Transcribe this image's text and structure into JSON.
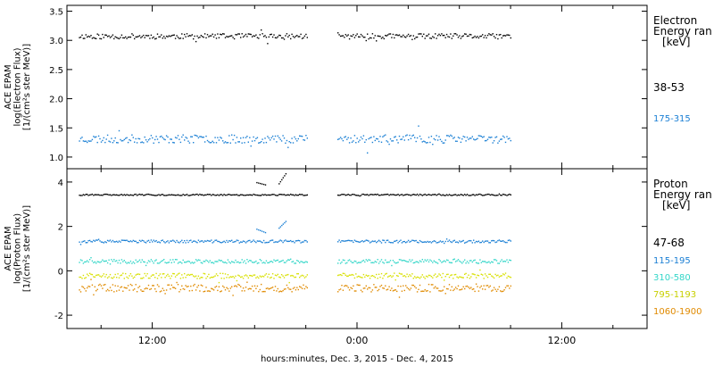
{
  "chart_data": [
    {
      "type": "scatter",
      "panel": "electron",
      "ylabel_lines": [
        "ACE EPAM",
        "log(Electron Flux)",
        "[1/(cm²s ster MeV)]"
      ],
      "ylim": [
        0.8,
        3.6
      ],
      "yticks": [
        1.0,
        1.5,
        2.0,
        2.5,
        3.0,
        3.5
      ],
      "ytick_labels": [
        "1.0",
        "1.5",
        "2.0",
        "2.5",
        "3.0",
        "3.5"
      ],
      "legend_title_lines": [
        "Electron",
        "Energy ran",
        "[keV]"
      ],
      "series": [
        {
          "name": "38-53",
          "color": "#000000",
          "base": 3.08,
          "noise": 0.045,
          "spike": 0.12,
          "seed": 11
        },
        {
          "name": "175-315",
          "color": "#1a7fd4",
          "base": 1.32,
          "noise": 0.07,
          "spike": 0.22,
          "seed": 23
        }
      ]
    },
    {
      "type": "scatter",
      "panel": "proton",
      "ylabel_lines": [
        "ACE EPAM",
        "log(Proton Flux)",
        "[1/(cm²s ster MeV)]"
      ],
      "ylim": [
        -2.6,
        4.6
      ],
      "yticks": [
        -2,
        0,
        2,
        4
      ],
      "ytick_labels": [
        "-2",
        "0",
        "2",
        "4"
      ],
      "legend_title_lines": [
        "Proton",
        "Energy ran",
        "[keV]"
      ],
      "series": [
        {
          "name": "47-68",
          "color": "#000000",
          "base": 3.45,
          "noise": 0.03,
          "spike": 0.05,
          "seed": 31
        },
        {
          "name": "115-195",
          "color": "#1a7fd4",
          "base": 1.35,
          "noise": 0.06,
          "spike": 0.1,
          "seed": 37
        },
        {
          "name": "310-580",
          "color": "#33d6c8",
          "base": 0.45,
          "noise": 0.09,
          "spike": 0.2,
          "seed": 41
        },
        {
          "name": "795-1193",
          "color": "#d8e000",
          "base": -0.2,
          "noise": 0.12,
          "spike": 0.3,
          "seed": 43
        },
        {
          "name": "1060-1900",
          "color": "#e08a00",
          "base": -0.75,
          "noise": 0.17,
          "spike": 0.45,
          "seed": 47
        }
      ]
    }
  ],
  "x_axis": {
    "label": "hours:minutes, Dec.  3, 2015 - Dec.  4, 2015",
    "xlim": [
      7,
      41
    ],
    "data_gap": [
      21.1,
      22.8
    ],
    "data_range": [
      7.7,
      33.0
    ],
    "ticks": [
      {
        "value": 12,
        "label": "12:00"
      },
      {
        "value": 24,
        "label": "0:00"
      },
      {
        "value": 36,
        "label": "12:00"
      }
    ],
    "minor_ticks": [
      9,
      15,
      18,
      21,
      27,
      30,
      33,
      39
    ]
  },
  "events": [
    {
      "x": [
        18.1,
        18.6
      ],
      "electron_none": true,
      "proton": [
        {
          "series": "47-68",
          "y": [
            4.0,
            3.9
          ]
        },
        {
          "series": "115-195",
          "y": [
            1.9,
            1.75
          ]
        }
      ]
    },
    {
      "x": [
        19.4,
        19.8
      ],
      "proton": [
        {
          "series": "47-68",
          "y": [
            3.95,
            4.4
          ]
        },
        {
          "series": "115-195",
          "y": [
            1.95,
            2.25
          ]
        }
      ]
    }
  ]
}
